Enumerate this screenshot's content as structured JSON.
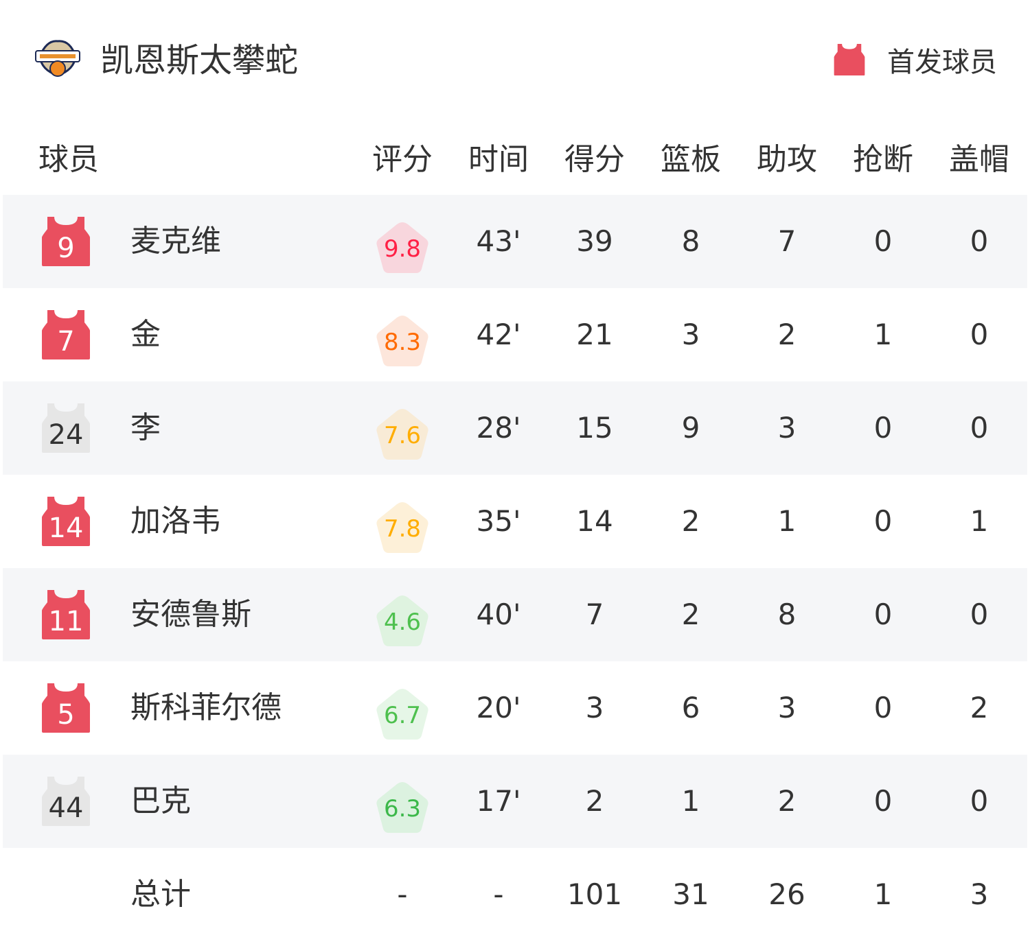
{
  "header": {
    "team_name": "凯恩斯太攀蛇",
    "logo_text": "CAIRNS TAIPANS",
    "legend_label": "首发球员",
    "starter_color": "#e94f5f",
    "bench_color": "#e6e6e6"
  },
  "columns": [
    "球员",
    "评分",
    "时间",
    "得分",
    "篮板",
    "助攻",
    "抢断",
    "盖帽"
  ],
  "players": [
    {
      "number": "9",
      "name": "麦克维",
      "starter": true,
      "rating": "9.8",
      "rating_color": "#ff2045",
      "rating_bg": "#f8d6dd",
      "min": "43'",
      "pts": "39",
      "reb": "8",
      "ast": "7",
      "stl": "0",
      "blk": "0"
    },
    {
      "number": "7",
      "name": "金",
      "starter": true,
      "rating": "8.3",
      "rating_color": "#ff6a00",
      "rating_bg": "#fde6db",
      "min": "42'",
      "pts": "21",
      "reb": "3",
      "ast": "2",
      "stl": "1",
      "blk": "0"
    },
    {
      "number": "24",
      "name": "李",
      "starter": false,
      "rating": "7.6",
      "rating_color": "#ffad00",
      "rating_bg": "#f8ebd6",
      "min": "28'",
      "pts": "15",
      "reb": "9",
      "ast": "3",
      "stl": "0",
      "blk": "0"
    },
    {
      "number": "14",
      "name": "加洛韦",
      "starter": true,
      "rating": "7.8",
      "rating_color": "#ffad00",
      "rating_bg": "#fdf0d8",
      "min": "35'",
      "pts": "14",
      "reb": "2",
      "ast": "1",
      "stl": "0",
      "blk": "1"
    },
    {
      "number": "11",
      "name": "安德鲁斯",
      "starter": true,
      "rating": "4.6",
      "rating_color": "#4ec04e",
      "rating_bg": "#dff3e0",
      "min": "40'",
      "pts": "7",
      "reb": "2",
      "ast": "8",
      "stl": "0",
      "blk": "0"
    },
    {
      "number": "5",
      "name": "斯科菲尔德",
      "starter": true,
      "rating": "6.7",
      "rating_color": "#4ec04e",
      "rating_bg": "#e6f6e7",
      "min": "20'",
      "pts": "3",
      "reb": "6",
      "ast": "3",
      "stl": "0",
      "blk": "2"
    },
    {
      "number": "44",
      "name": "巴克",
      "starter": false,
      "rating": "6.3",
      "rating_color": "#3cb84a",
      "rating_bg": "#dcf2e0",
      "min": "17'",
      "pts": "2",
      "reb": "1",
      "ast": "2",
      "stl": "0",
      "blk": "0"
    }
  ],
  "total": {
    "label": "总计",
    "rating": "-",
    "min": "-",
    "pts": "101",
    "reb": "31",
    "ast": "26",
    "stl": "1",
    "blk": "3"
  }
}
